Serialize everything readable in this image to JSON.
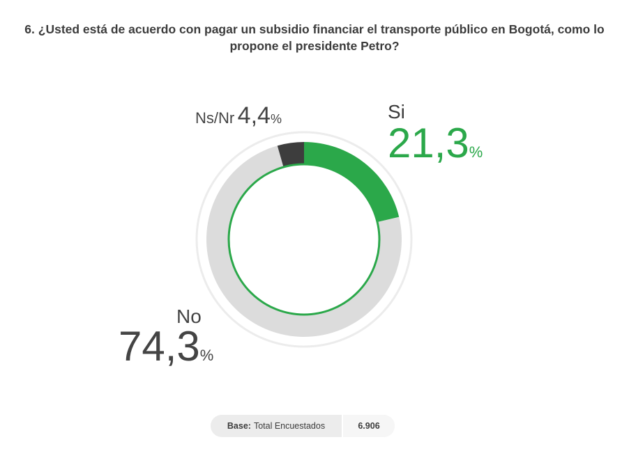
{
  "chart_data": {
    "type": "pie",
    "title": "6. ¿Usted está de acuerdo con pagar un subsidio financiar el transporte público en Bogotá, como lo propone el presidente Petro?",
    "slices": [
      {
        "label": "Si",
        "value": 21.3,
        "display": "21,3",
        "color": "#2ba84a"
      },
      {
        "label": "No",
        "value": 74.3,
        "display": "74,3",
        "color": "#dcdcdc"
      },
      {
        "label": "Ns/Nr",
        "value": 4.4,
        "display": "4,4",
        "color": "#3d3d3d"
      }
    ],
    "unit": "%"
  },
  "base": {
    "label": "Base:",
    "description": "Total Encuestados",
    "value": "6.906"
  }
}
